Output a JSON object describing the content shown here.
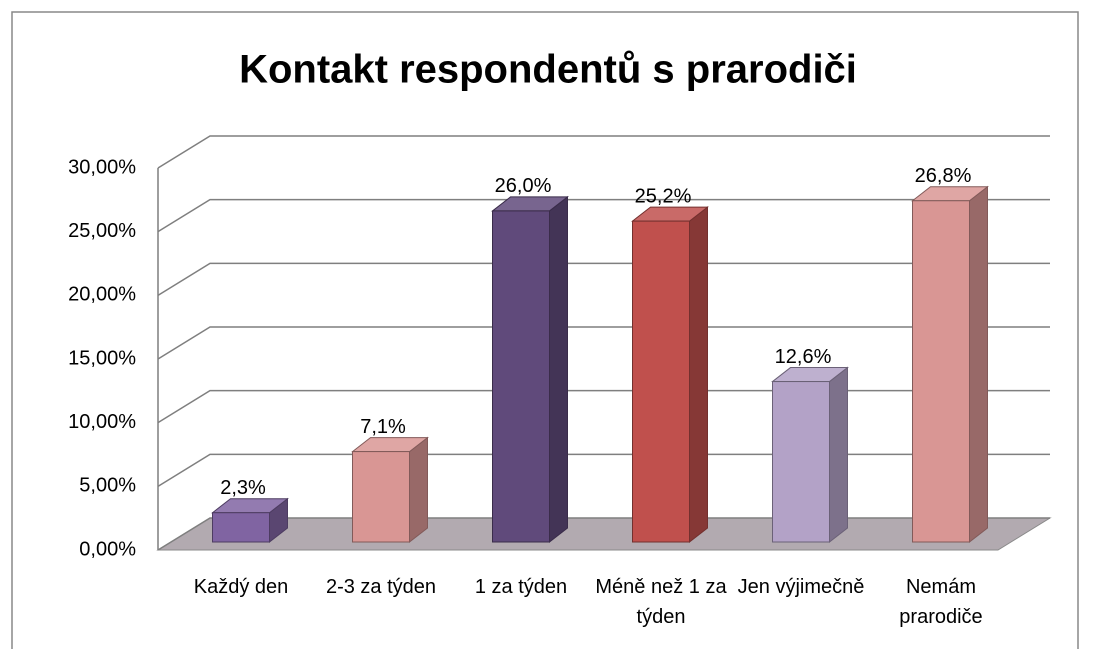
{
  "chart_data": {
    "type": "bar3d",
    "title": "Kontakt respondentů s prarodiči",
    "categories": [
      "Každý den",
      "2-3 za týden",
      "1 za týden",
      "Méně než 1 za týden",
      "Jen výjimečně",
      "Nemám prarodiče"
    ],
    "values": [
      2.3,
      7.1,
      26.0,
      25.2,
      12.6,
      26.8
    ],
    "value_labels": [
      "2,3%",
      "7,1%",
      "26,0%",
      "25,2%",
      "12,6%",
      "26,8%"
    ],
    "colors": [
      "#8064a2",
      "#d99694",
      "#604a7b",
      "#c0504d",
      "#b3a2c7",
      "#d99694"
    ],
    "ylim": [
      0,
      30
    ],
    "yticks": [
      {
        "value": 0,
        "label": "0,00%"
      },
      {
        "value": 5,
        "label": "5,00%"
      },
      {
        "value": 10,
        "label": "10,00%"
      },
      {
        "value": 15,
        "label": "15,00%"
      },
      {
        "value": 20,
        "label": "20,00%"
      },
      {
        "value": 25,
        "label": "25,00%"
      },
      {
        "value": 30,
        "label": "30,00%"
      }
    ],
    "grid": true
  }
}
